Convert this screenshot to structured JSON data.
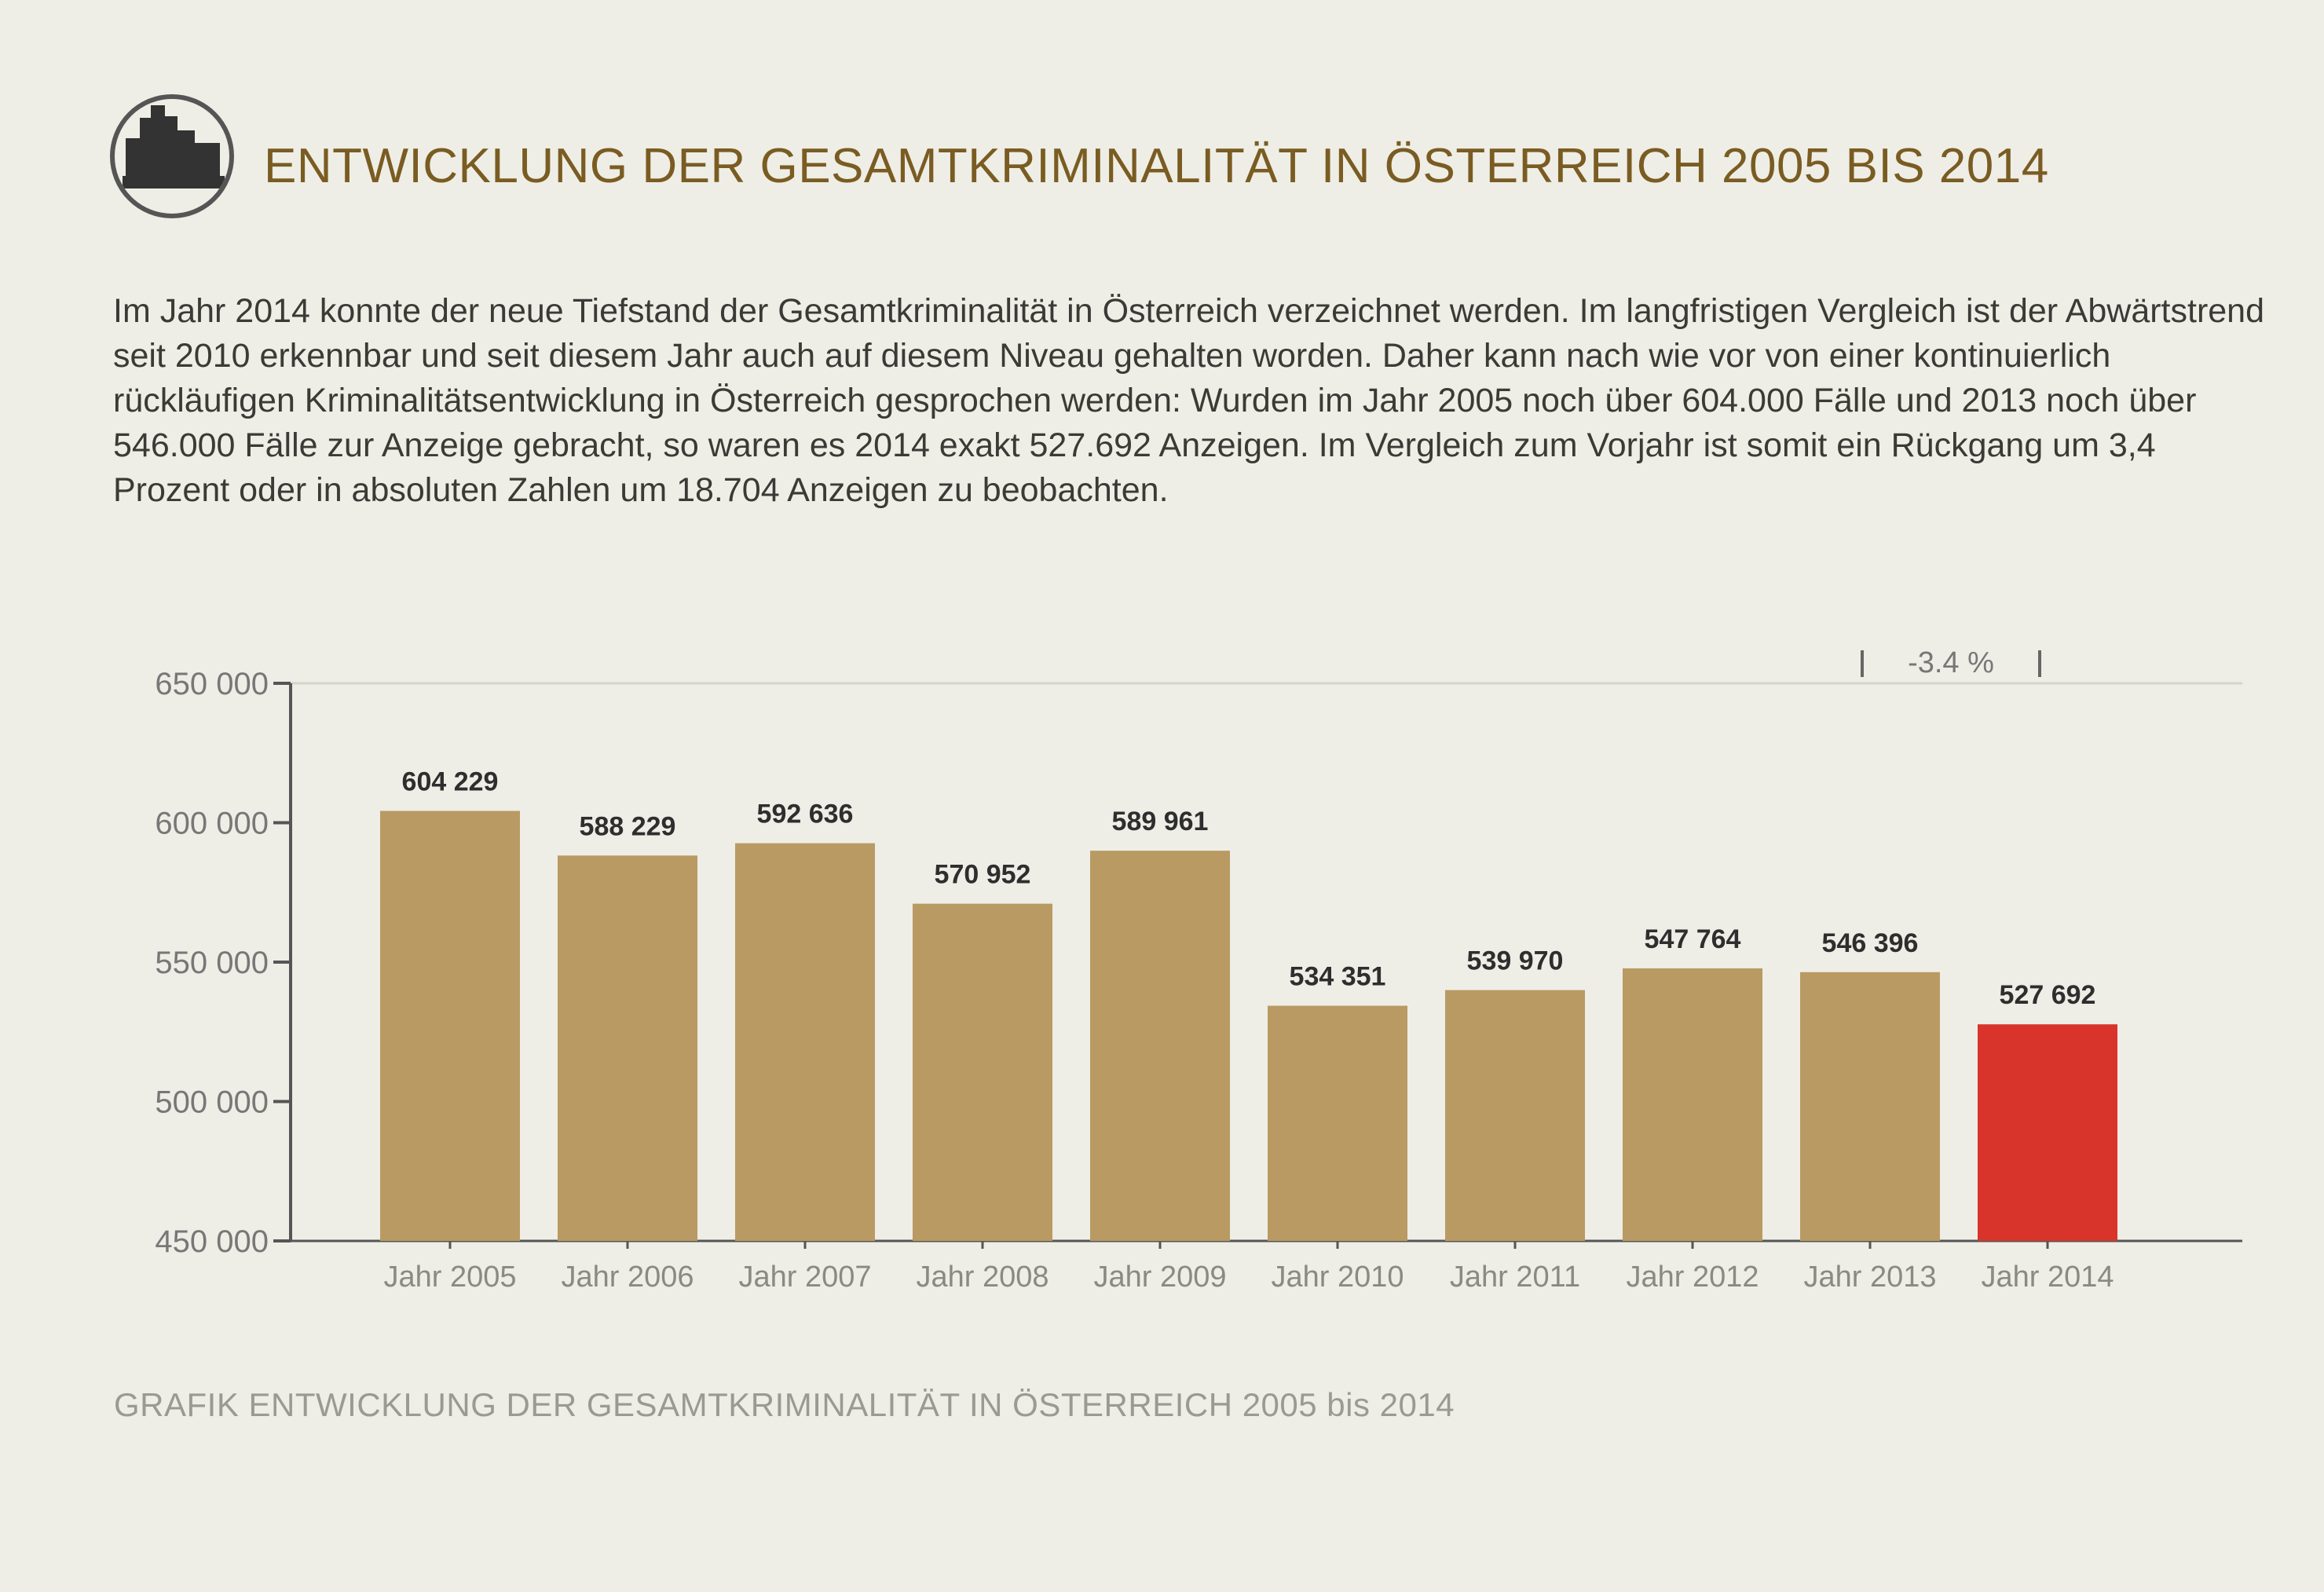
{
  "header": {
    "logo": "bar-chart-logo-icon",
    "title": "ENTWICKLUNG DER GESAMTKRIMINALITÄT IN ÖSTERREICH 2005 BIS 2014"
  },
  "intro": "Im Jahr 2014 konnte der neue Tiefstand der Gesamtkriminalität in Österreich verzeichnet werden. Im langfristigen Vergleich ist der Abwärtstrend seit 2010 erkennbar und seit diesem Jahr auch auf diesem Niveau gehalten worden. Daher kann nach wie vor von einer kontinuierlich rückläufigen Kriminalitätsentwicklung in Österreich gesprochen werden: Wurden im Jahr 2005 noch über 604.000 Fälle und 2013 noch über 546.000 Fälle zur Anzeige gebracht, so waren es 2014 exakt 527.692 Anzeigen. Im Vergleich zum Vorjahr ist somit ein Rückgang um 3,4 Prozent oder in absoluten Zahlen um 18.704 Anzeigen zu beobachten.",
  "caption": "GRAFIK ENTWICKLUNG DER GESAMTKRIMINALITÄT IN ÖSTERREICH 2005 bis 2014",
  "colors": {
    "bar": "#b99a63",
    "highlight": "#d9342b",
    "title": "#7a5c22",
    "axis": "#555555"
  },
  "chart_data": {
    "type": "bar",
    "categories": [
      "Jahr 2005",
      "Jahr 2006",
      "Jahr 2007",
      "Jahr 2008",
      "Jahr 2009",
      "Jahr 2010",
      "Jahr 2011",
      "Jahr 2012",
      "Jahr 2013",
      "Jahr 2014"
    ],
    "values": [
      604229,
      588229,
      592636,
      570952,
      589961,
      534351,
      539970,
      547764,
      546396,
      527692
    ],
    "value_labels": [
      "604 229",
      "588 229",
      "592 636",
      "570 952",
      "589 961",
      "534 351",
      "539 970",
      "547 764",
      "546 396",
      "527 692"
    ],
    "yticks": [
      450000,
      500000,
      550000,
      600000,
      650000
    ],
    "ytick_labels": [
      "450 000",
      "500 000",
      "550 000",
      "600 000",
      "650 000"
    ],
    "ylim": [
      450000,
      650000
    ],
    "highlight_index": 9,
    "annotation": "-3.4 %",
    "grid": false
  }
}
